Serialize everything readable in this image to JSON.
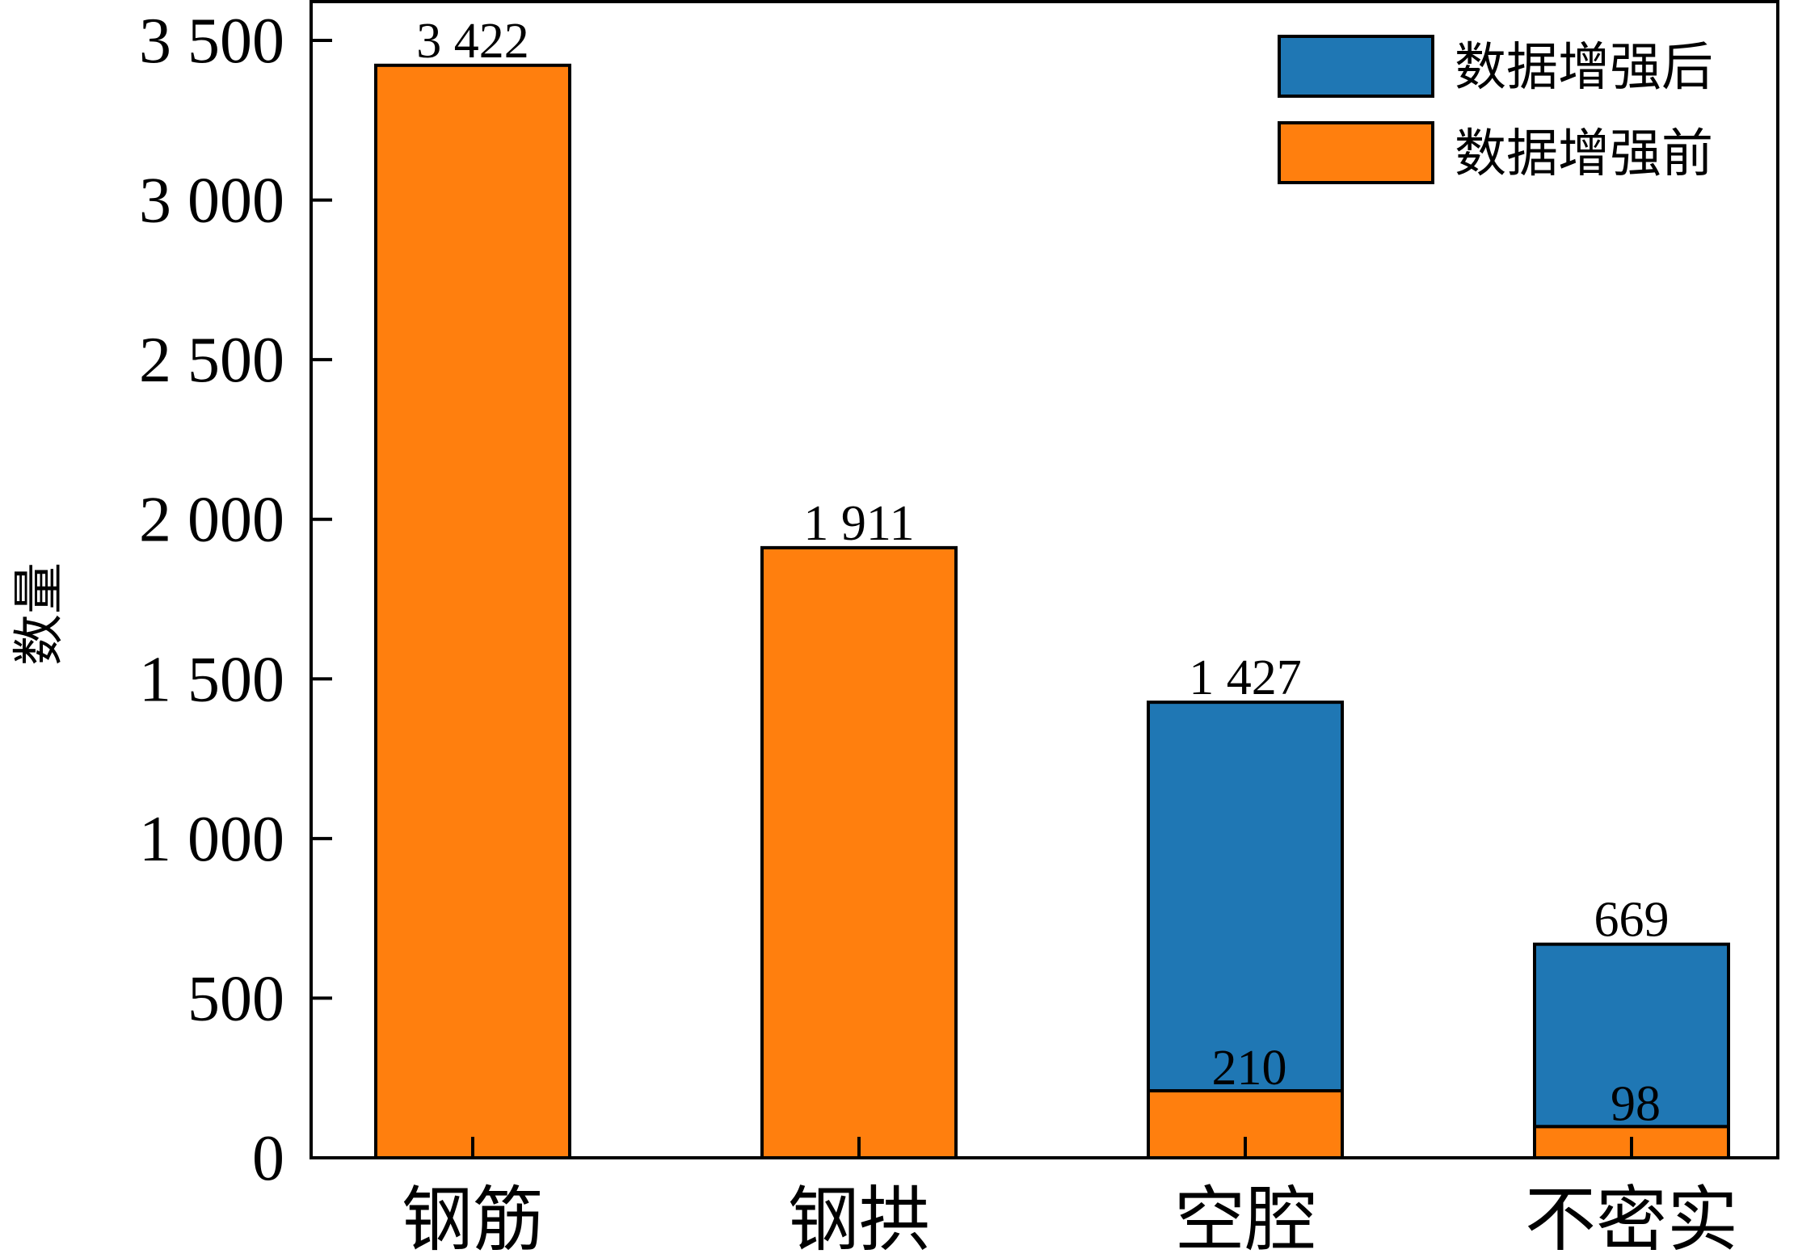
{
  "chart_data": {
    "type": "bar",
    "stacked": true,
    "categories": [
      "钢筋",
      "钢拱",
      "空腔",
      "不密实"
    ],
    "series": [
      {
        "name": "数据增强前",
        "values": [
          3422,
          1911,
          210,
          98
        ],
        "color": "#ff7f0e"
      },
      {
        "name": "数据增强后",
        "values": [
          0,
          0,
          1217,
          571
        ],
        "color": "#1f77b4"
      }
    ],
    "total_labels": [
      "3 422",
      "1 911",
      "1 427",
      "669"
    ],
    "inner_labels": [
      "",
      "",
      "210",
      "98"
    ],
    "ylabel": "数量",
    "ylim": [
      0,
      3500
    ],
    "yticks": [
      0,
      500,
      1000,
      1500,
      2000,
      2500,
      3000,
      3500
    ],
    "ytick_labels": [
      "0",
      "500",
      "1 000",
      "1 500",
      "2 000",
      "2 500",
      "3 000",
      "3 500"
    ],
    "legend": {
      "placement": "top-right",
      "order": [
        "数据增强后",
        "数据增强前"
      ]
    },
    "grid": false
  }
}
